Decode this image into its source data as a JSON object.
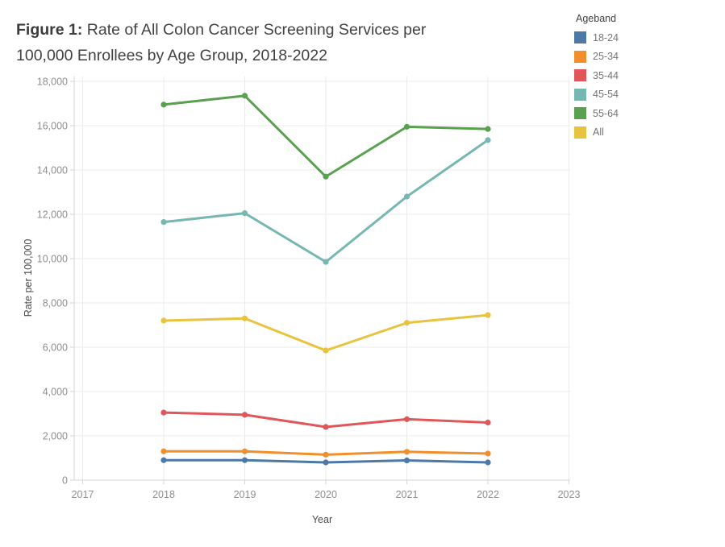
{
  "title": {
    "prefix": "Figure 1:",
    "line1": " Rate of All Colon Cancer Screening Services per",
    "line2": "100,000 Enrollees by Age Group, 2018-2022"
  },
  "legend": {
    "title": "Ageband",
    "items": [
      {
        "label": "18-24",
        "color": "#4e79a7"
      },
      {
        "label": "25-34",
        "color": "#f28e2b"
      },
      {
        "label": "35-44",
        "color": "#e15759"
      },
      {
        "label": "45-54",
        "color": "#76b7b2"
      },
      {
        "label": "55-64",
        "color": "#59a14f"
      },
      {
        "label": "All",
        "color": "#e8c33f"
      }
    ]
  },
  "chart_data": {
    "type": "line",
    "title": "Figure 1: Rate of All Colon Cancer Screening Services per 100,000 Enrollees by Age Group, 2018-2022",
    "xlabel": "Year",
    "ylabel": "Rate per 100,000",
    "x": [
      2018,
      2019,
      2020,
      2021,
      2022
    ],
    "series": [
      {
        "name": "18-24",
        "color": "#4e79a7",
        "values": [
          900,
          900,
          800,
          890,
          800
        ]
      },
      {
        "name": "25-34",
        "color": "#f28e2b",
        "values": [
          1300,
          1300,
          1150,
          1280,
          1200
        ]
      },
      {
        "name": "35-44",
        "color": "#e15759",
        "values": [
          3050,
          2950,
          2400,
          2750,
          2600
        ]
      },
      {
        "name": "45-54",
        "color": "#76b7b2",
        "values": [
          11650,
          12050,
          9850,
          12800,
          15350
        ]
      },
      {
        "name": "55-64",
        "color": "#59a14f",
        "values": [
          16950,
          17350,
          13700,
          15950,
          15850
        ]
      },
      {
        "name": "All",
        "color": "#e8c33f",
        "values": [
          7200,
          7300,
          5850,
          7100,
          7450
        ]
      }
    ],
    "xlim": [
      2017,
      2023
    ],
    "ylim": [
      0,
      18000
    ],
    "x_ticks": [
      2017,
      2018,
      2019,
      2020,
      2021,
      2022,
      2023
    ],
    "x_tick_labels": [
      "2017",
      "2018",
      "2019",
      "2020",
      "2021",
      "2022",
      "2023"
    ],
    "y_ticks": [
      0,
      2000,
      4000,
      6000,
      8000,
      10000,
      12000,
      14000,
      16000,
      18000
    ],
    "y_tick_labels": [
      "0",
      "2,000",
      "4,000",
      "6,000",
      "8,000",
      "10,000",
      "12,000",
      "14,000",
      "16,000",
      "18,000"
    ],
    "grid": true,
    "legend_position": "top-right",
    "legend_title": "Ageband"
  }
}
